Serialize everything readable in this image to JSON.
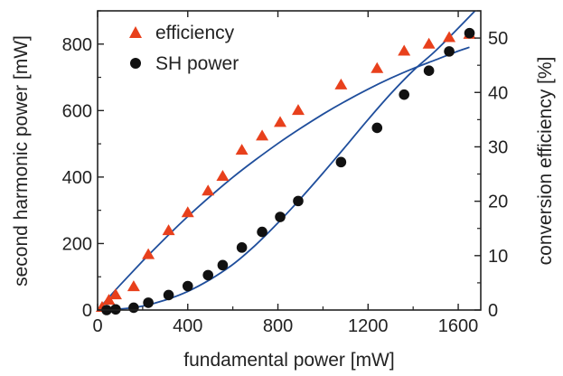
{
  "chart_data": {
    "type": "scatter",
    "title": "",
    "xlabel": "fundamental power [mW]",
    "ylabel_left": "second harmonic power [mW]",
    "ylabel_right": "conversion efficiency [%]",
    "xlim": [
      0,
      1700
    ],
    "ylim_left": [
      0,
      900
    ],
    "ylim_right": [
      0,
      55
    ],
    "x_ticks": [
      0,
      400,
      800,
      1200,
      1600
    ],
    "y_ticks_left": [
      0,
      200,
      400,
      600,
      800
    ],
    "y_ticks_right": [
      0,
      10,
      20,
      30,
      40,
      50
    ],
    "grid": false,
    "legend_position": "top-left",
    "colors": {
      "efficiency": "#e8401c",
      "sh_power": "#111111",
      "fit_line": "#1f4e9c",
      "axes": "#222222"
    },
    "series": [
      {
        "name": "efficiency",
        "axis": "right",
        "marker": "triangle",
        "x": [
          20,
          50,
          80,
          160,
          225,
          315,
          400,
          490,
          555,
          640,
          730,
          810,
          890,
          1080,
          1240,
          1360,
          1470,
          1560,
          1650
        ],
        "y": [
          0.5,
          1.8,
          2.8,
          4.3,
          10.2,
          14.6,
          17.9,
          21.9,
          24.6,
          29.4,
          32.0,
          34.5,
          36.7,
          41.4,
          44.4,
          47.6,
          48.9,
          50.1,
          50.7
        ]
      },
      {
        "name": "SH power",
        "axis": "left",
        "marker": "circle",
        "x": [
          40,
          80,
          160,
          225,
          315,
          400,
          490,
          555,
          640,
          730,
          810,
          890,
          1080,
          1240,
          1360,
          1470,
          1560,
          1650
        ],
        "y": [
          0,
          2,
          7,
          22,
          45,
          72,
          105,
          135,
          188,
          235,
          280,
          328,
          445,
          548,
          648,
          720,
          778,
          833
        ]
      }
    ],
    "fits": [
      {
        "series": "efficiency",
        "axis": "right",
        "x": [
          0,
          100,
          200,
          300,
          400,
          500,
          600,
          700,
          800,
          900,
          1000,
          1100,
          1200,
          1300,
          1400,
          1500,
          1600,
          1650
        ],
        "y": [
          0,
          4.6,
          9.0,
          13.2,
          17.2,
          20.9,
          24.4,
          27.6,
          30.6,
          33.4,
          36.0,
          38.4,
          40.6,
          42.6,
          44.4,
          46.0,
          47.6,
          48.3
        ]
      },
      {
        "series": "SH power",
        "axis": "left",
        "x": [
          0,
          100,
          200,
          300,
          400,
          500,
          600,
          700,
          800,
          900,
          1000,
          1100,
          1200,
          1300,
          1400,
          1500,
          1600,
          1700
        ],
        "y": [
          0,
          3,
          12,
          30,
          56,
          92,
          137,
          195,
          262,
          335,
          412,
          492,
          573,
          650,
          720,
          780,
          848,
          918
        ]
      }
    ]
  }
}
